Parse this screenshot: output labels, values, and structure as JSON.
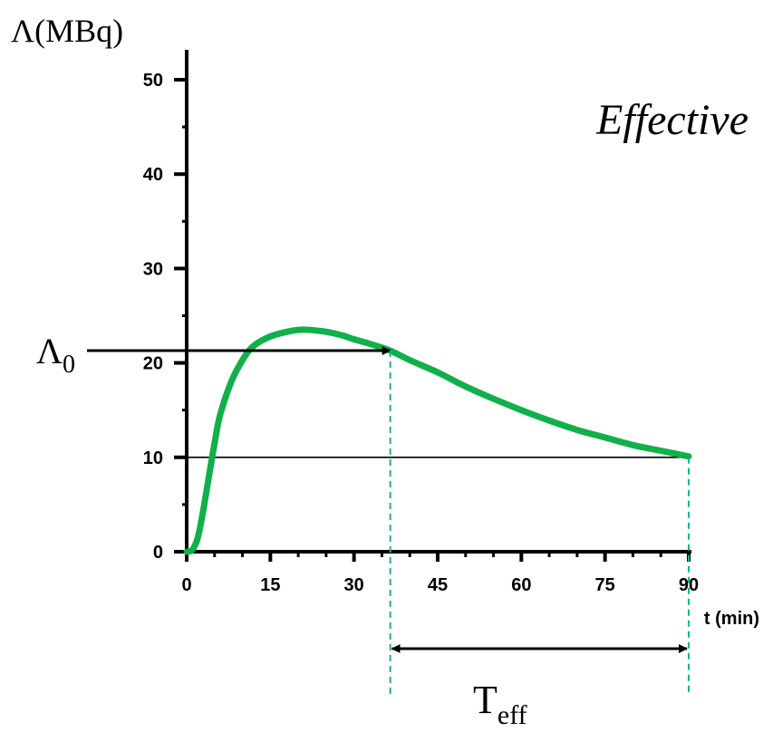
{
  "chart_data": {
    "type": "line",
    "title": "Effective",
    "xlabel": "t (min)",
    "ylabel": "Λ(MBq)",
    "xlim": [
      0,
      90
    ],
    "ylim": [
      0,
      50
    ],
    "x_ticks": [
      0,
      15,
      30,
      45,
      60,
      75,
      90
    ],
    "y_ticks": [
      0,
      10,
      20,
      30,
      40,
      50
    ],
    "grid": false,
    "series": [
      {
        "color": "#10b04a",
        "x": [
          0,
          1,
          2,
          3,
          4,
          5,
          6,
          8,
          10,
          12,
          15,
          18,
          20,
          22,
          25,
          28,
          30,
          33,
          36.5,
          40,
          45,
          50,
          55,
          60,
          65,
          70,
          75,
          80,
          85,
          90
        ],
        "y": [
          0,
          0.2,
          1.5,
          4.5,
          8,
          11.5,
          14.5,
          18,
          20.3,
          21.8,
          22.8,
          23.3,
          23.5,
          23.5,
          23.3,
          22.9,
          22.5,
          22,
          21.3,
          20.3,
          19,
          17.5,
          16.2,
          15,
          13.9,
          12.9,
          12.1,
          11.3,
          10.7,
          10.1
        ]
      }
    ],
    "reference_lines": [
      {
        "orientation": "horizontal",
        "y": 10,
        "x_end": 90
      }
    ],
    "annotations": {
      "lambda0": {
        "symbol": "Λ",
        "subscript": "0",
        "y": 21.3,
        "x_end": 36.5
      },
      "teff": {
        "symbol": "T",
        "subscript": "eff",
        "x_start": 36.5,
        "x_end": 90
      }
    }
  }
}
